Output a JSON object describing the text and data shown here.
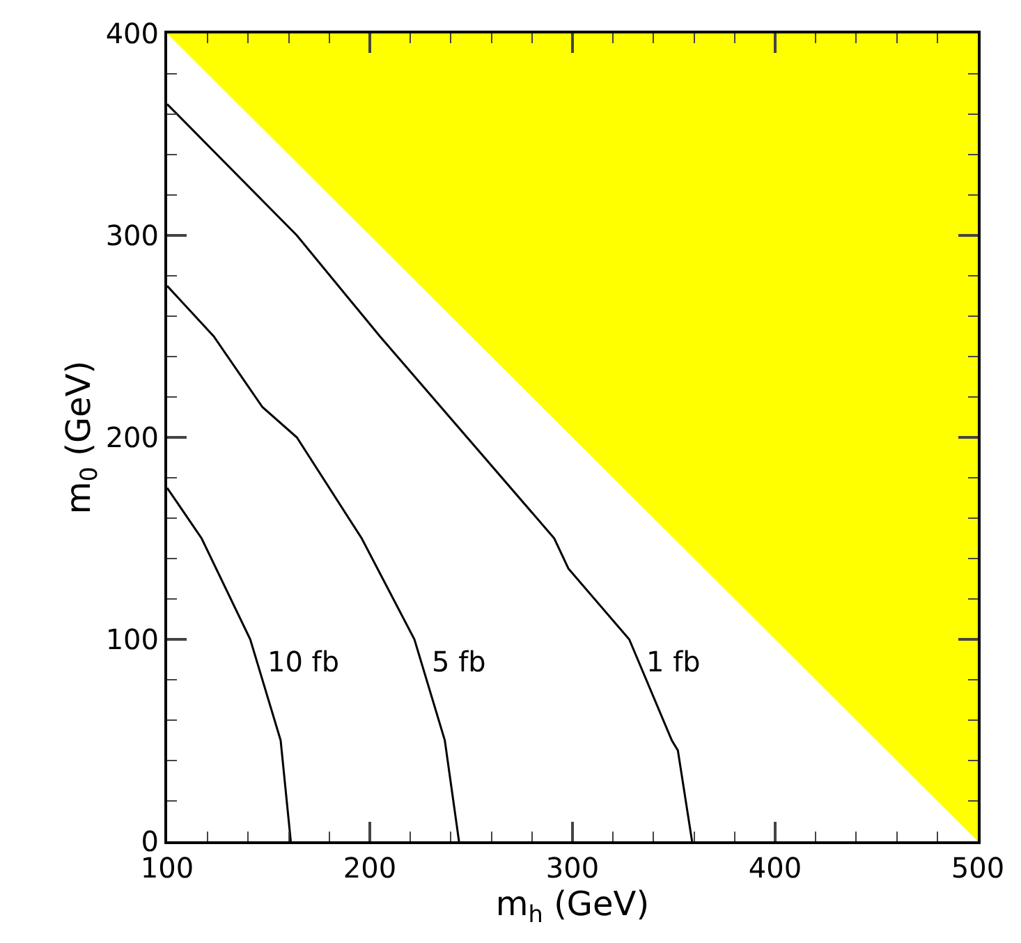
{
  "chart_data": {
    "type": "line",
    "xlabel": "m$_{h}$ (GeV)",
    "ylabel": "m$_{0}$ (GeV)",
    "xlim": [
      100,
      500
    ],
    "ylim": [
      0,
      400
    ],
    "xticks": [
      100,
      200,
      300,
      400,
      500
    ],
    "yticks": [
      0,
      100,
      200,
      300,
      400
    ],
    "grid": false,
    "marker": "none",
    "line_style": "solid",
    "series": [
      {
        "type": "area",
        "color": "#ffff00",
        "x": [
          100,
          500
        ],
        "values": [
          400,
          0
        ]
      },
      {
        "name": "1 fb",
        "color": "#000000",
        "x": [
          100,
          164,
          205,
          291,
          298,
          328,
          349,
          352,
          359
        ],
        "values": [
          365,
          300,
          250,
          150,
          135,
          100,
          50,
          45,
          0
        ]
      },
      {
        "name": "5 fb",
        "color": "#000000",
        "x": [
          100,
          123,
          147,
          164,
          196,
          222,
          237,
          244
        ],
        "values": [
          275,
          250,
          215,
          200,
          150,
          100,
          50,
          0
        ]
      },
      {
        "name": "10 fb",
        "color": "#000000",
        "x": [
          100,
          117,
          141,
          156,
          161
        ],
        "values": [
          175,
          150,
          100,
          50,
          0
        ]
      }
    ]
  }
}
